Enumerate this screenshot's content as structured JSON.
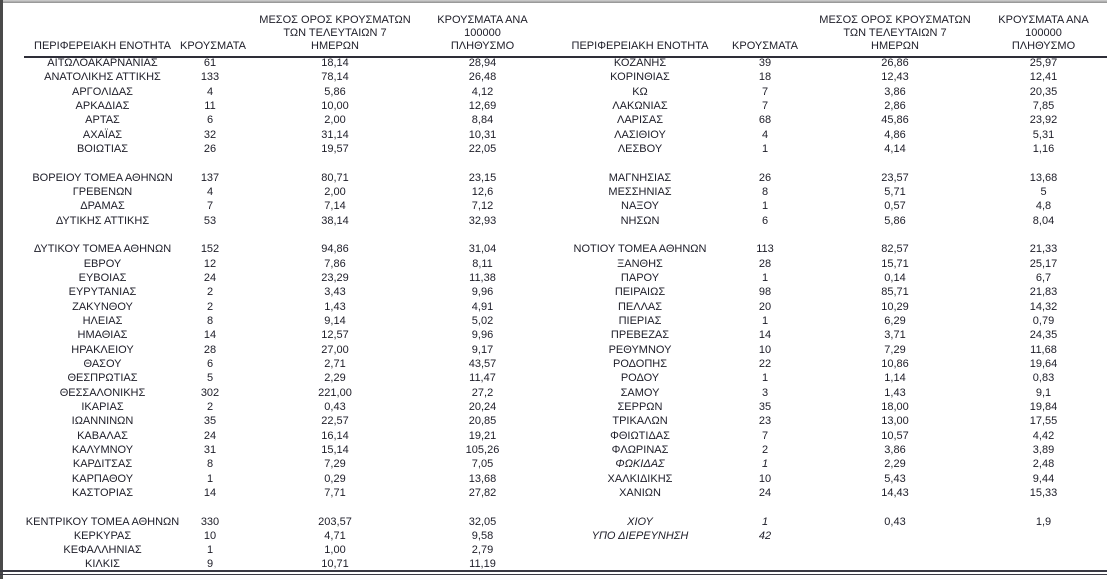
{
  "document": {
    "headers": {
      "region": "ΠΕΡΙΦΕΡΕΙΑΚΗ ΕΝΟΤΗΤΑ",
      "cases": "ΚΡΟΥΣΜΑΤΑ",
      "avg7": "ΜΕΣΟΣ ΟΡΟΣ ΚΡΟΥΣΜΑΤΩΝ\nΤΩΝ ΤΕΛΕΥΤΑΙΩΝ 7\nΗΜΕΡΩΝ",
      "per100k": "ΚΡΟΥΣΜΑΤΑ ΑΝΑ 100000\nΠΛΗΘΥΣΜΟ"
    },
    "left_rows": [
      [
        "ΑΙΤΩΛΟΑΚΑΡΝΑΝΙΑΣ",
        "61",
        "18,14",
        "28,94"
      ],
      [
        "ΑΝΑΤΟΛΙΚΗΣ ΑΤΤΙΚΗΣ",
        "133",
        "78,14",
        "26,48"
      ],
      [
        "ΑΡΓΟΛΙΔΑΣ",
        "4",
        "5,86",
        "4,12"
      ],
      [
        "ΑΡΚΑΔΙΑΣ",
        "11",
        "10,00",
        "12,69"
      ],
      [
        "ΑΡΤΑΣ",
        "6",
        "2,00",
        "8,84"
      ],
      [
        "ΑΧΑΪΑΣ",
        "32",
        "31,14",
        "10,31"
      ],
      [
        "ΒΟΙΩΤΙΑΣ",
        "26",
        "19,57",
        "22,05"
      ],
      null,
      [
        "ΒΟΡΕΙΟΥ ΤΟΜΕΑ ΑΘΗΝΩΝ",
        "137",
        "80,71",
        "23,15"
      ],
      [
        "ΓΡΕΒΕΝΩΝ",
        "4",
        "2,00",
        "12,6"
      ],
      [
        "ΔΡΑΜΑΣ",
        "7",
        "7,14",
        "7,12"
      ],
      [
        "ΔΥΤΙΚΗΣ ΑΤΤΙΚΗΣ",
        "53",
        "38,14",
        "32,93"
      ],
      null,
      [
        "ΔΥΤΙΚΟΥ ΤΟΜΕΑ ΑΘΗΝΩΝ",
        "152",
        "94,86",
        "31,04"
      ],
      [
        "ΕΒΡΟΥ",
        "12",
        "7,86",
        "8,11"
      ],
      [
        "ΕΥΒΟΙΑΣ",
        "24",
        "23,29",
        "11,38"
      ],
      [
        "ΕΥΡΥΤΑΝΙΑΣ",
        "2",
        "3,43",
        "9,96"
      ],
      [
        "ΖΑΚΥΝΘΟΥ",
        "2",
        "1,43",
        "4,91"
      ],
      [
        "ΗΛΕΙΑΣ",
        "8",
        "9,14",
        "5,02"
      ],
      [
        "ΗΜΑΘΙΑΣ",
        "14",
        "12,57",
        "9,96"
      ],
      [
        "ΗΡΑΚΛΕΙΟΥ",
        "28",
        "27,00",
        "9,17"
      ],
      [
        "ΘΑΣΟΥ",
        "6",
        "2,71",
        "43,57"
      ],
      [
        "ΘΕΣΠΡΩΤΙΑΣ",
        "5",
        "2,29",
        "11,47"
      ],
      [
        "ΘΕΣΣΑΛΟΝΙΚΗΣ",
        "302",
        "221,00",
        "27,2"
      ],
      [
        "ΙΚΑΡΙΑΣ",
        "2",
        "0,43",
        "20,24"
      ],
      [
        "ΙΩΑΝΝΙΝΩΝ",
        "35",
        "22,57",
        "20,85"
      ],
      [
        "ΚΑΒΑΛΑΣ",
        "24",
        "16,14",
        "19,21"
      ],
      [
        "ΚΑΛΥΜΝΟΥ",
        "31",
        "15,14",
        "105,26"
      ],
      [
        "ΚΑΡΔΙΤΣΑΣ",
        "8",
        "7,29",
        "7,05"
      ],
      [
        "ΚΑΡΠΑΘΟΥ",
        "1",
        "0,29",
        "13,68"
      ],
      [
        "ΚΑΣΤΟΡΙΑΣ",
        "14",
        "7,71",
        "27,82"
      ],
      null,
      [
        "ΚΕΝΤΡΙΚΟΥ ΤΟΜΕΑ ΑΘΗΝΩΝ",
        "330",
        "203,57",
        "32,05"
      ],
      [
        "ΚΕΡΚΥΡΑΣ",
        "10",
        "4,71",
        "9,58"
      ],
      [
        "ΚΕΦΑΛΛΗΝΙΑΣ",
        "1",
        "1,00",
        "2,79"
      ],
      [
        "ΚΙΛΚΙΣ",
        "9",
        "10,71",
        "11,19"
      ]
    ],
    "right_rows": [
      [
        "ΚΟΖΑΝΗΣ",
        "39",
        "26,86",
        "25,97"
      ],
      [
        "ΚΟΡΙΝΘΙΑΣ",
        "18",
        "12,43",
        "12,41"
      ],
      [
        "ΚΩ",
        "7",
        "3,86",
        "20,35"
      ],
      [
        "ΛΑΚΩΝΙΑΣ",
        "7",
        "2,86",
        "7,85"
      ],
      [
        "ΛΑΡΙΣΑΣ",
        "68",
        "45,86",
        "23,92"
      ],
      [
        "ΛΑΣΙΘΙΟΥ",
        "4",
        "4,86",
        "5,31"
      ],
      [
        "ΛΕΣΒΟΥ",
        "1",
        "4,14",
        "1,16"
      ],
      null,
      [
        "ΜΑΓΝΗΣΙΑΣ",
        "26",
        "23,57",
        "13,68"
      ],
      [
        "ΜΕΣΣΗΝΙΑΣ",
        "8",
        "5,71",
        "5"
      ],
      [
        "ΝΑΞΟΥ",
        "1",
        "0,57",
        "4,8"
      ],
      [
        "ΝΗΣΩΝ",
        "6",
        "5,86",
        "8,04"
      ],
      null,
      [
        "ΝΟΤΙΟΥ ΤΟΜΕΑ ΑΘΗΝΩΝ",
        "113",
        "82,57",
        "21,33"
      ],
      [
        "ΞΑΝΘΗΣ",
        "28",
        "15,71",
        "25,17"
      ],
      [
        "ΠΑΡΟΥ",
        "1",
        "0,14",
        "6,7"
      ],
      [
        "ΠΕΙΡΑΙΩΣ",
        "98",
        "85,71",
        "21,83"
      ],
      [
        "ΠΕΛΛΑΣ",
        "20",
        "10,29",
        "14,32"
      ],
      [
        "ΠΙΕΡΙΑΣ",
        "1",
        "6,29",
        "0,79"
      ],
      [
        "ΠΡΕΒΕΖΑΣ",
        "14",
        "3,71",
        "24,35"
      ],
      [
        "ΡΕΘΥΜΝΟΥ",
        "10",
        "7,29",
        "11,68"
      ],
      [
        "ΡΟΔΟΠΗΣ",
        "22",
        "10,86",
        "19,64"
      ],
      [
        "ΡΟΔΟΥ",
        "1",
        "1,14",
        "0,83"
      ],
      [
        "ΣΑΜΟΥ",
        "3",
        "1,43",
        "9,1"
      ],
      [
        "ΣΕΡΡΩΝ",
        "35",
        "18,00",
        "19,84"
      ],
      [
        "ΤΡΙΚΑΛΩΝ",
        "23",
        "13,00",
        "17,55"
      ],
      [
        "ΦΘΙΩΤΙΔΑΣ",
        "7",
        "10,57",
        "4,42"
      ],
      [
        "ΦΛΩΡΙΝΑΣ",
        "2",
        "3,86",
        "3,89"
      ],
      [
        "ΦΩΚΙΔΑΣ",
        "1",
        "2,29",
        "2,48",
        true
      ],
      [
        "ΧΑΛΚΙΔΙΚΗΣ",
        "10",
        "5,43",
        "9,44"
      ],
      [
        "ΧΑΝΙΩΝ",
        "24",
        "14,43",
        "15,33"
      ],
      null,
      [
        "ΧΙΟΥ",
        "1",
        "0,43",
        "1,9",
        true
      ],
      [
        "ΥΠΟ ΔΙΕΡΕΥΝΗΣΗ",
        "42",
        "",
        "",
        true
      ],
      null,
      null
    ]
  }
}
